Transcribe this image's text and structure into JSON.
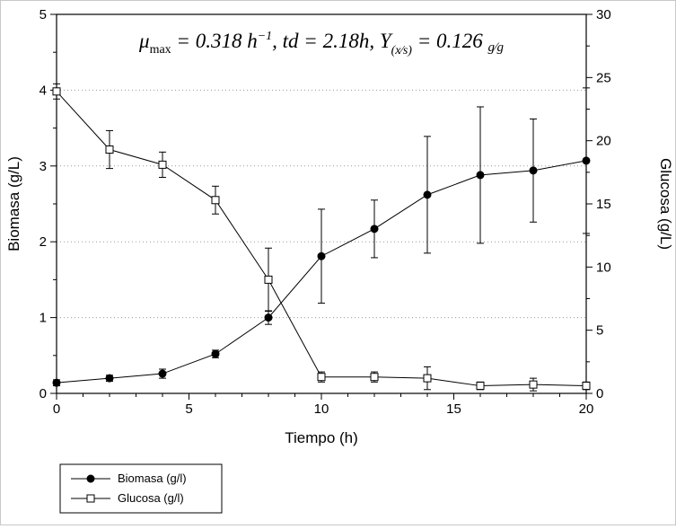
{
  "chart_data": {
    "type": "line",
    "annotation": {
      "mu": "μ",
      "mu_sub": "max",
      "seg1": " = 0.318 ",
      "h": "h",
      "h_sup": "−1",
      "seg2": ", td = 2.18h, Y",
      "y_sub": "(x⁄s)",
      "seg3": " = 0.126 ",
      "unit": "g⁄g"
    },
    "xlabel": "Tiempo (h)",
    "ylabel_left": "Biomasa (g/L)",
    "ylabel_right": "Glucosa (g/L)",
    "xlim": [
      0,
      20
    ],
    "ylim_left": [
      0,
      5
    ],
    "ylim_right": [
      0,
      30
    ],
    "x_ticks": [
      0,
      5,
      10,
      15,
      20
    ],
    "x_minor_step": 1,
    "y_ticks_left": [
      0,
      1,
      2,
      3,
      4,
      5
    ],
    "y_minor_step_left": 0.5,
    "y_ticks_right": [
      0,
      5,
      10,
      15,
      20,
      25,
      30
    ],
    "y_minor_step_right": 2.5,
    "grid": "horizontal-dotted",
    "legend_position": "bottom-left",
    "x": [
      0,
      2,
      4,
      6,
      8,
      10,
      12,
      14,
      16,
      18,
      20
    ],
    "series": [
      {
        "name": "Biomasa (g/l)",
        "axis": "left",
        "marker": "filled-circle",
        "values": [
          0.14,
          0.2,
          0.26,
          0.52,
          1.0,
          1.81,
          2.17,
          2.62,
          2.88,
          2.94,
          3.07
        ],
        "errors": [
          0.04,
          0.04,
          0.06,
          0.05,
          0.09,
          0.62,
          0.38,
          0.77,
          0.9,
          0.68,
          0.96
        ]
      },
      {
        "name": "Glucosa (g/l)",
        "axis": "right",
        "marker": "open-square",
        "values": [
          23.9,
          19.3,
          18.1,
          15.3,
          9.0,
          1.3,
          1.3,
          1.2,
          0.6,
          0.7,
          0.6
        ],
        "errors": [
          0.6,
          1.5,
          1.0,
          1.1,
          2.5,
          0.4,
          0.4,
          0.9,
          0.3,
          0.5,
          0.3
        ]
      }
    ]
  }
}
